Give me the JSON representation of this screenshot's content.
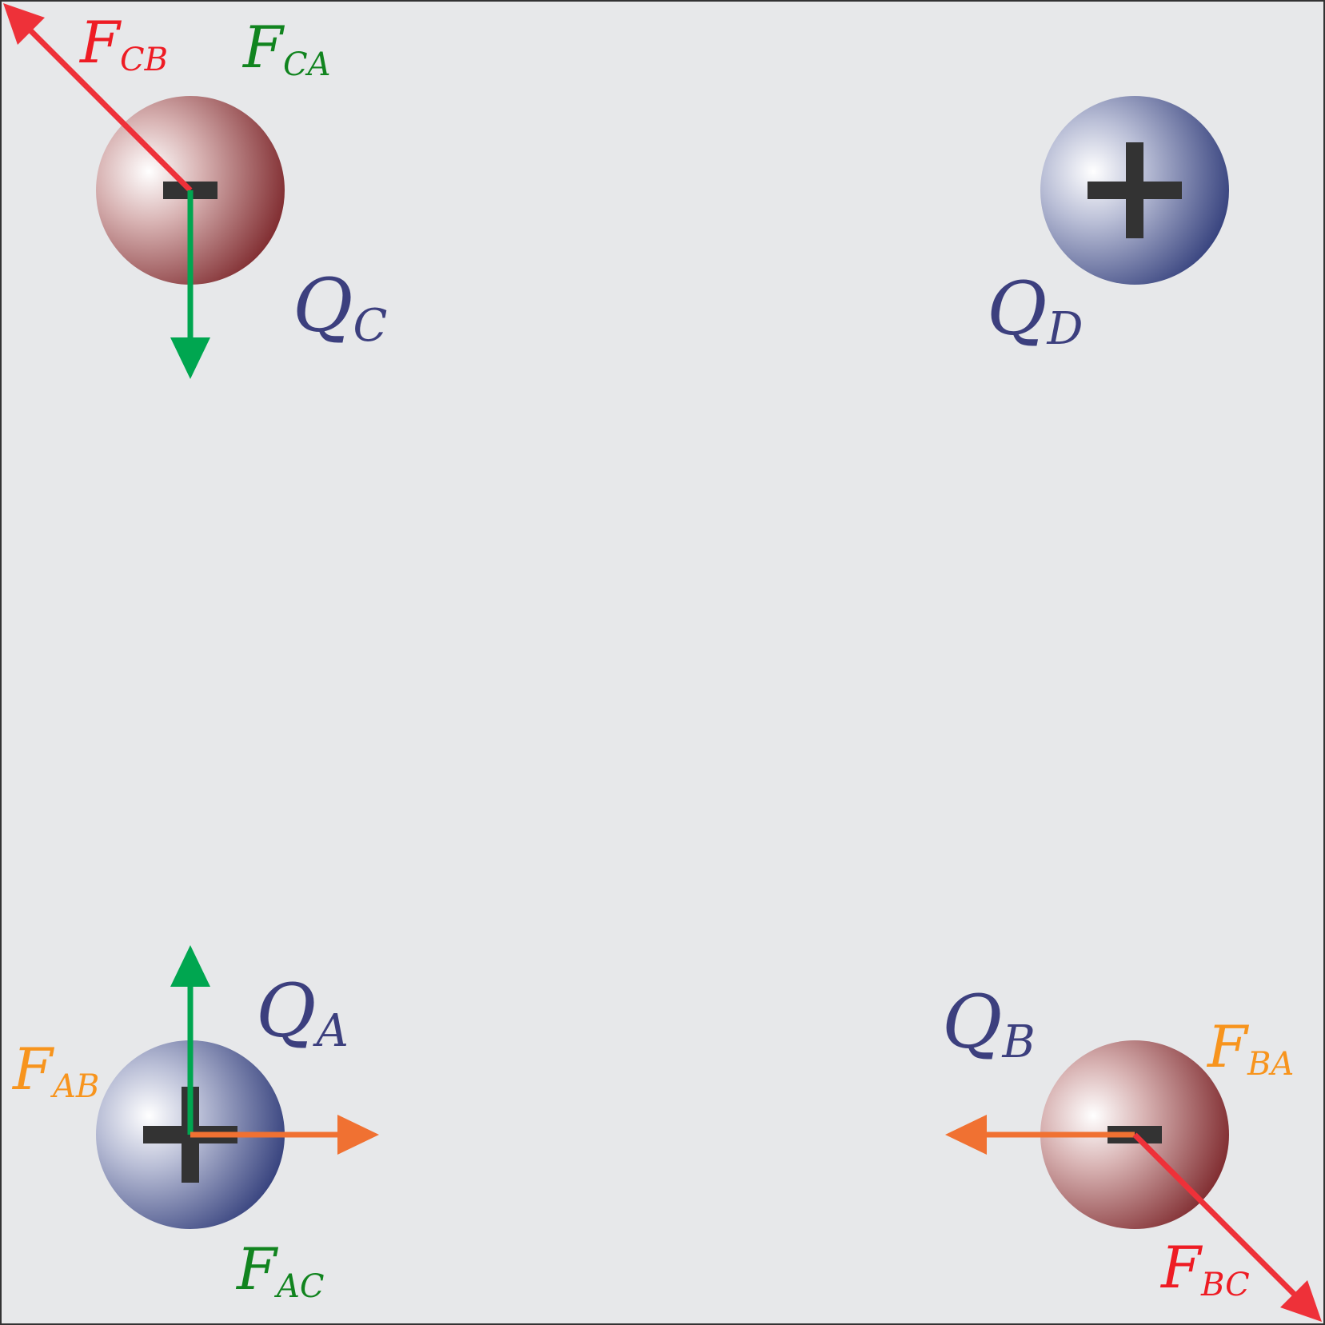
{
  "colors": {
    "background": "#e7e8ea",
    "border": "#333333",
    "positive_charge": "#2e3a78",
    "negative_charge": "#7a2327",
    "sign": "#333333",
    "charge_label": "#3c3f7e",
    "force_red": "#ee3139",
    "force_green": "#00a650",
    "force_orange": "#f07132",
    "label_red": "#ee1c24",
    "label_green": "#11841f",
    "label_orange": "#f7941d"
  },
  "charges": {
    "A": {
      "main": "Q",
      "sub": "A",
      "sign": "+"
    },
    "B": {
      "main": "Q",
      "sub": "B",
      "sign": "−"
    },
    "C": {
      "main": "Q",
      "sub": "C",
      "sign": "−"
    },
    "D": {
      "main": "Q",
      "sub": "D",
      "sign": "+"
    }
  },
  "forces": {
    "CB": {
      "main": "F",
      "sub": "CB"
    },
    "CA": {
      "main": "F",
      "sub": "CA"
    },
    "AB": {
      "main": "F",
      "sub": "AB"
    },
    "AC": {
      "main": "F",
      "sub": "AC"
    },
    "BA": {
      "main": "F",
      "sub": "BA"
    },
    "BC": {
      "main": "F",
      "sub": "BC"
    }
  }
}
